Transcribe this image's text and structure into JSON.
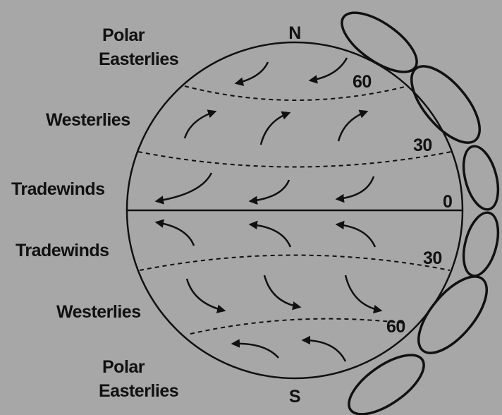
{
  "poles": {
    "north": "N",
    "south": "S"
  },
  "wind_belts": [
    {
      "lines": [
        "Polar",
        "Easterlies"
      ]
    },
    {
      "lines": [
        "Westerlies"
      ]
    },
    {
      "lines": [
        "Tradewinds"
      ]
    },
    {
      "lines": [
        "Tradewinds"
      ]
    },
    {
      "lines": [
        "Westerlies"
      ]
    },
    {
      "lines": [
        "Polar",
        "Easterlies"
      ]
    }
  ],
  "latitudes": [
    "60",
    "30",
    "0",
    "30",
    "60"
  ]
}
